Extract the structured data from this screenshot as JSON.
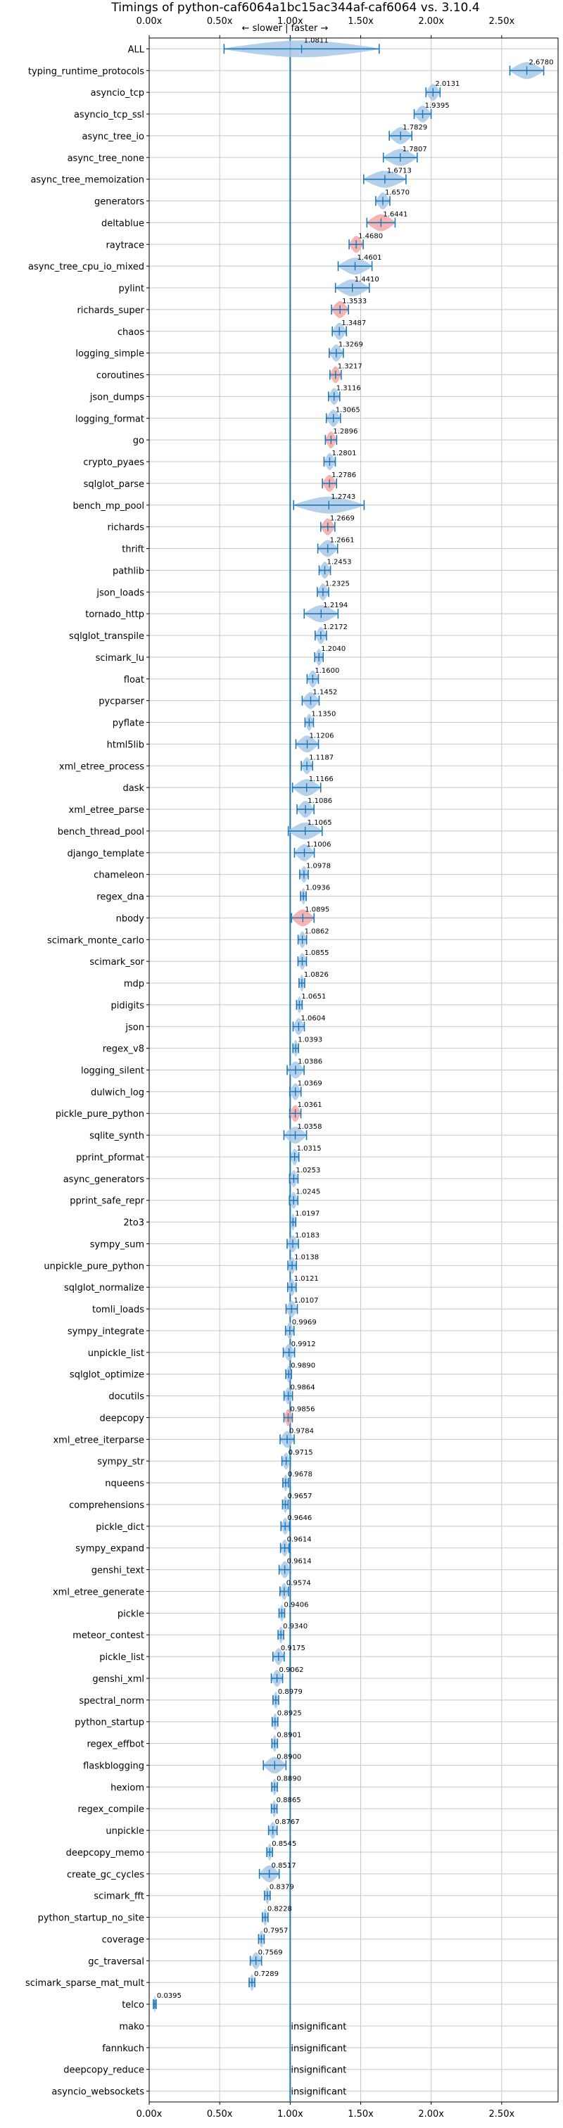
{
  "chart_data": {
    "type": "violin",
    "title": "Timings of python-caf6064a1bc15ac344af-caf6064 vs. 3.10.4",
    "direction_label": "← slower | faster →",
    "xlim": [
      0,
      2.9
    ],
    "x_ticks": [
      0,
      0.5,
      1.0,
      1.5,
      2.0,
      2.5
    ],
    "x_tick_labels": [
      "0.00x",
      "0.50x",
      "1.00x",
      "1.50x",
      "2.00x",
      "2.50x"
    ],
    "reference_line": 1.0,
    "insignificant_label": "insignificant",
    "colors": {
      "faster": "#1f77b4",
      "slower": "#d62728",
      "violin_faster": "#a8c8e8",
      "violin_slower": "#f4a6a6",
      "grid": "#c8c8c8"
    },
    "benchmarks": [
      {
        "name": "ALL",
        "value": 1.0811,
        "label": "1.0811",
        "spread": 0.55
      },
      {
        "name": "typing_runtime_protocols",
        "value": 2.678,
        "label": "2.6780",
        "spread": 0.12
      },
      {
        "name": "asyncio_tcp",
        "value": 2.0131,
        "label": "2.0131",
        "spread": 0.05
      },
      {
        "name": "asyncio_tcp_ssl",
        "value": 1.9395,
        "label": "1.9395",
        "spread": 0.06
      },
      {
        "name": "async_tree_io",
        "value": 1.7829,
        "label": "1.7829",
        "spread": 0.08
      },
      {
        "name": "async_tree_none",
        "value": 1.7807,
        "label": "1.7807",
        "spread": 0.12
      },
      {
        "name": "async_tree_memoization",
        "value": 1.6713,
        "label": "1.6713",
        "spread": 0.15
      },
      {
        "name": "generators",
        "value": 1.657,
        "label": "1.6570",
        "spread": 0.05
      },
      {
        "name": "deltablue",
        "value": 1.6441,
        "label": "1.6441",
        "spread": 0.1,
        "slower_tint": true
      },
      {
        "name": "raytrace",
        "value": 1.468,
        "label": "1.4680",
        "spread": 0.05,
        "slower_tint": true
      },
      {
        "name": "async_tree_cpu_io_mixed",
        "value": 1.4601,
        "label": "1.4601",
        "spread": 0.12
      },
      {
        "name": "pylint",
        "value": 1.441,
        "label": "1.4410",
        "spread": 0.12
      },
      {
        "name": "richards_super",
        "value": 1.3533,
        "label": "1.3533",
        "spread": 0.06,
        "slower_tint": true
      },
      {
        "name": "chaos",
        "value": 1.3487,
        "label": "1.3487",
        "spread": 0.05
      },
      {
        "name": "logging_simple",
        "value": 1.3269,
        "label": "1.3269",
        "spread": 0.05
      },
      {
        "name": "coroutines",
        "value": 1.3217,
        "label": "1.3217",
        "spread": 0.04,
        "slower_tint": true
      },
      {
        "name": "json_dumps",
        "value": 1.3116,
        "label": "1.3116",
        "spread": 0.04
      },
      {
        "name": "logging_format",
        "value": 1.3065,
        "label": "1.3065",
        "spread": 0.05
      },
      {
        "name": "go",
        "value": 1.2896,
        "label": "1.2896",
        "spread": 0.04,
        "slower_tint": true
      },
      {
        "name": "crypto_pyaes",
        "value": 1.2801,
        "label": "1.2801",
        "spread": 0.04
      },
      {
        "name": "sqlglot_parse",
        "value": 1.2786,
        "label": "1.2786",
        "spread": 0.05,
        "slower_tint": true
      },
      {
        "name": "bench_mp_pool",
        "value": 1.2743,
        "label": "1.2743",
        "spread": 0.25
      },
      {
        "name": "richards",
        "value": 1.2669,
        "label": "1.2669",
        "spread": 0.05,
        "slower_tint": true
      },
      {
        "name": "thrift",
        "value": 1.2661,
        "label": "1.2661",
        "spread": 0.07
      },
      {
        "name": "pathlib",
        "value": 1.2453,
        "label": "1.2453",
        "spread": 0.04
      },
      {
        "name": "json_loads",
        "value": 1.2325,
        "label": "1.2325",
        "spread": 0.04
      },
      {
        "name": "tornado_http",
        "value": 1.2194,
        "label": "1.2194",
        "spread": 0.12
      },
      {
        "name": "sqlglot_transpile",
        "value": 1.2172,
        "label": "1.2172",
        "spread": 0.04
      },
      {
        "name": "scimark_lu",
        "value": 1.204,
        "label": "1.2040",
        "spread": 0.03
      },
      {
        "name": "float",
        "value": 1.16,
        "label": "1.1600",
        "spread": 0.04
      },
      {
        "name": "pycparser",
        "value": 1.1452,
        "label": "1.1452",
        "spread": 0.06
      },
      {
        "name": "pyflate",
        "value": 1.135,
        "label": "1.1350",
        "spread": 0.03
      },
      {
        "name": "html5lib",
        "value": 1.1206,
        "label": "1.1206",
        "spread": 0.08
      },
      {
        "name": "xml_etree_process",
        "value": 1.1187,
        "label": "1.1187",
        "spread": 0.04
      },
      {
        "name": "dask",
        "value": 1.1166,
        "label": "1.1166",
        "spread": 0.1
      },
      {
        "name": "xml_etree_parse",
        "value": 1.1086,
        "label": "1.1086",
        "spread": 0.06
      },
      {
        "name": "bench_thread_pool",
        "value": 1.1065,
        "label": "1.1065",
        "spread": 0.12
      },
      {
        "name": "django_template",
        "value": 1.1006,
        "label": "1.1006",
        "spread": 0.07
      },
      {
        "name": "chameleon",
        "value": 1.0978,
        "label": "1.0978",
        "spread": 0.03
      },
      {
        "name": "regex_dna",
        "value": 1.0936,
        "label": "1.0936",
        "spread": 0.02
      },
      {
        "name": "nbody",
        "value": 1.0895,
        "label": "1.0895",
        "spread": 0.08,
        "slower_tint": true
      },
      {
        "name": "scimark_monte_carlo",
        "value": 1.0862,
        "label": "1.0862",
        "spread": 0.03
      },
      {
        "name": "scimark_sor",
        "value": 1.0855,
        "label": "1.0855",
        "spread": 0.03
      },
      {
        "name": "mdp",
        "value": 1.0826,
        "label": "1.0826",
        "spread": 0.02
      },
      {
        "name": "pidigits",
        "value": 1.0651,
        "label": "1.0651",
        "spread": 0.02
      },
      {
        "name": "json",
        "value": 1.0604,
        "label": "1.0604",
        "spread": 0.04
      },
      {
        "name": "regex_v8",
        "value": 1.0393,
        "label": "1.0393",
        "spread": 0.02
      },
      {
        "name": "logging_silent",
        "value": 1.0386,
        "label": "1.0386",
        "spread": 0.06
      },
      {
        "name": "dulwich_log",
        "value": 1.0369,
        "label": "1.0369",
        "spread": 0.04
      },
      {
        "name": "pickle_pure_python",
        "value": 1.0361,
        "label": "1.0361",
        "spread": 0.04,
        "slower_tint": true
      },
      {
        "name": "sqlite_synth",
        "value": 1.0358,
        "label": "1.0358",
        "spread": 0.08
      },
      {
        "name": "pprint_pformat",
        "value": 1.0315,
        "label": "1.0315",
        "spread": 0.03
      },
      {
        "name": "async_generators",
        "value": 1.0253,
        "label": "1.0253",
        "spread": 0.03
      },
      {
        "name": "pprint_safe_repr",
        "value": 1.0245,
        "label": "1.0245",
        "spread": 0.03
      },
      {
        "name": "2to3",
        "value": 1.0197,
        "label": "1.0197",
        "spread": 0.02
      },
      {
        "name": "sympy_sum",
        "value": 1.0183,
        "label": "1.0183",
        "spread": 0.04
      },
      {
        "name": "unpickle_pure_python",
        "value": 1.0138,
        "label": "1.0138",
        "spread": 0.03
      },
      {
        "name": "sqlglot_normalize",
        "value": 1.0121,
        "label": "1.0121",
        "spread": 0.03
      },
      {
        "name": "tomli_loads",
        "value": 1.0107,
        "label": "1.0107",
        "spread": 0.04
      },
      {
        "name": "sympy_integrate",
        "value": 0.9969,
        "label": "0.9969",
        "spread": 0.03
      },
      {
        "name": "unpickle_list",
        "value": 0.9912,
        "label": "0.9912",
        "spread": 0.04
      },
      {
        "name": "sqlglot_optimize",
        "value": 0.989,
        "label": "0.9890",
        "spread": 0.02
      },
      {
        "name": "docutils",
        "value": 0.9864,
        "label": "0.9864",
        "spread": 0.03
      },
      {
        "name": "deepcopy",
        "value": 0.9856,
        "label": "0.9856",
        "spread": 0.03,
        "slower_tint": true
      },
      {
        "name": "xml_etree_iterparse",
        "value": 0.9784,
        "label": "0.9784",
        "spread": 0.05
      },
      {
        "name": "sympy_str",
        "value": 0.9715,
        "label": "0.9715",
        "spread": 0.03
      },
      {
        "name": "nqueens",
        "value": 0.9678,
        "label": "0.9678",
        "spread": 0.02
      },
      {
        "name": "comprehensions",
        "value": 0.9657,
        "label": "0.9657",
        "spread": 0.02
      },
      {
        "name": "pickle_dict",
        "value": 0.9646,
        "label": "0.9646",
        "spread": 0.03
      },
      {
        "name": "sympy_expand",
        "value": 0.9614,
        "label": "0.9614",
        "spread": 0.03
      },
      {
        "name": "genshi_text",
        "value": 0.9614,
        "label": "0.9614",
        "spread": 0.04
      },
      {
        "name": "xml_etree_generate",
        "value": 0.9574,
        "label": "0.9574",
        "spread": 0.03
      },
      {
        "name": "pickle",
        "value": 0.9406,
        "label": "0.9406",
        "spread": 0.02
      },
      {
        "name": "meteor_contest",
        "value": 0.934,
        "label": "0.9340",
        "spread": 0.02
      },
      {
        "name": "pickle_list",
        "value": 0.9175,
        "label": "0.9175",
        "spread": 0.04
      },
      {
        "name": "genshi_xml",
        "value": 0.9062,
        "label": "0.9062",
        "spread": 0.04
      },
      {
        "name": "spectral_norm",
        "value": 0.8979,
        "label": "0.8979",
        "spread": 0.02
      },
      {
        "name": "python_startup",
        "value": 0.8925,
        "label": "0.8925",
        "spread": 0.02
      },
      {
        "name": "regex_effbot",
        "value": 0.8901,
        "label": "0.8901",
        "spread": 0.02
      },
      {
        "name": "flaskblogging",
        "value": 0.89,
        "label": "0.8900",
        "spread": 0.08
      },
      {
        "name": "hexiom",
        "value": 0.889,
        "label": "0.8890",
        "spread": 0.02
      },
      {
        "name": "regex_compile",
        "value": 0.8865,
        "label": "0.8865",
        "spread": 0.02
      },
      {
        "name": "unpickle",
        "value": 0.8767,
        "label": "0.8767",
        "spread": 0.03
      },
      {
        "name": "deepcopy_memo",
        "value": 0.8545,
        "label": "0.8545",
        "spread": 0.02
      },
      {
        "name": "create_gc_cycles",
        "value": 0.8517,
        "label": "0.8517",
        "spread": 0.07
      },
      {
        "name": "scimark_fft",
        "value": 0.8379,
        "label": "0.8379",
        "spread": 0.02
      },
      {
        "name": "python_startup_no_site",
        "value": 0.8228,
        "label": "0.8228",
        "spread": 0.02
      },
      {
        "name": "coverage",
        "value": 0.7957,
        "label": "0.7957",
        "spread": 0.02
      },
      {
        "name": "gc_traversal",
        "value": 0.7569,
        "label": "0.7569",
        "spread": 0.04
      },
      {
        "name": "scimark_sparse_mat_mult",
        "value": 0.7289,
        "label": "0.7289",
        "spread": 0.02
      },
      {
        "name": "telco",
        "value": 0.0395,
        "label": "0.0395",
        "spread": 0.01
      },
      {
        "name": "mako",
        "insignificant": true
      },
      {
        "name": "fannkuch",
        "insignificant": true
      },
      {
        "name": "deepcopy_reduce",
        "insignificant": true
      },
      {
        "name": "asyncio_websockets",
        "insignificant": true
      }
    ]
  }
}
